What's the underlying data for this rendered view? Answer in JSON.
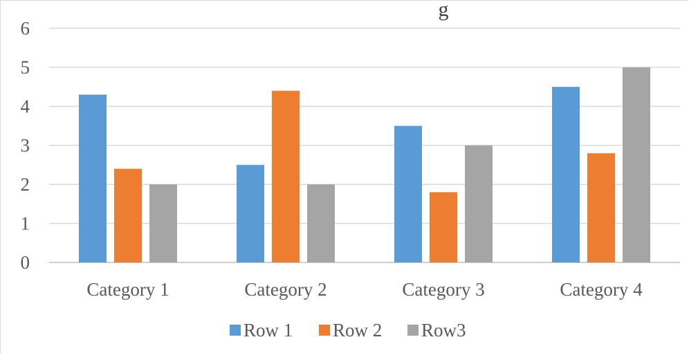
{
  "chart_data": {
    "type": "bar",
    "title": "g",
    "categories": [
      "Category 1",
      "Category 2",
      "Category 3",
      "Category 4"
    ],
    "series": [
      {
        "name": "Row 1",
        "color": "#5b9bd5",
        "values": [
          4.3,
          2.5,
          3.5,
          4.5
        ]
      },
      {
        "name": "Row 2",
        "color": "#ed7d31",
        "values": [
          2.4,
          4.4,
          1.8,
          2.8
        ]
      },
      {
        "name": "Row3",
        "color": "#a5a5a5",
        "values": [
          2,
          2,
          3,
          5
        ]
      }
    ],
    "ylim": [
      0,
      6
    ],
    "yticks": [
      "0",
      "1",
      "2",
      "3",
      "4",
      "5",
      "6"
    ],
    "grid": true,
    "legend_position": "bottom"
  }
}
